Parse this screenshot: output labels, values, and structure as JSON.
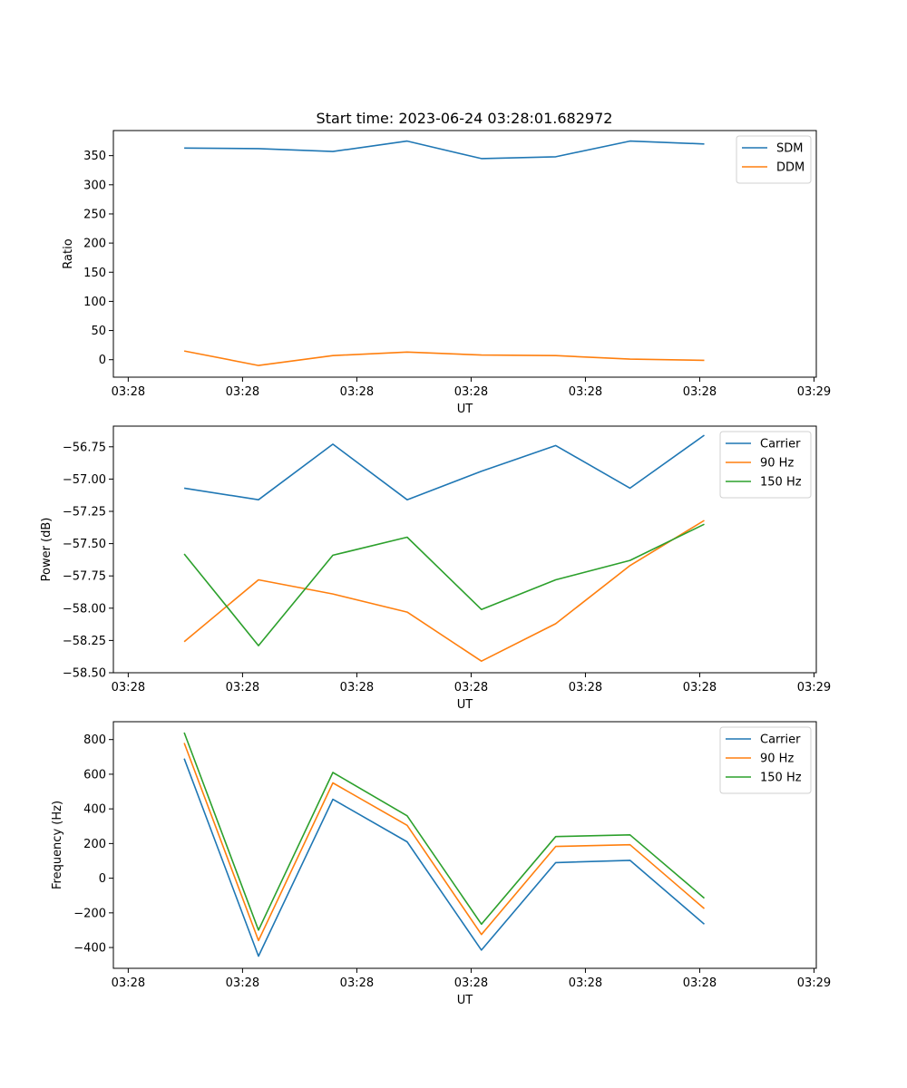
{
  "figure": {
    "title": "Start time: 2023-06-24 03:28:01.682972"
  },
  "chart_data": [
    {
      "type": "line",
      "xlabel": "UT",
      "ylabel": "Ratio",
      "x_ticks": [
        "03:28",
        "03:28",
        "03:28",
        "03:28",
        "03:28",
        "03:28",
        "03:29"
      ],
      "x_ticks_pos": [
        0,
        1,
        2,
        3,
        4,
        5,
        6
      ],
      "x": [
        0.49,
        1.14,
        1.79,
        2.44,
        3.09,
        3.74,
        4.39,
        5.04
      ],
      "xlim": [
        -0.13,
        6.02
      ],
      "y_ticks": [
        0,
        50,
        100,
        150,
        200,
        250,
        300,
        350
      ],
      "ylim": [
        -30,
        393
      ],
      "grid": false,
      "legend_position": "top-right",
      "series": [
        {
          "name": "SDM",
          "color": "#1f77b4",
          "values": [
            363,
            362,
            357,
            375,
            345,
            348,
            375,
            370
          ]
        },
        {
          "name": "DDM",
          "color": "#ff7f0e",
          "values": [
            15,
            -10,
            7,
            13,
            8,
            7,
            1,
            -1
          ]
        }
      ]
    },
    {
      "type": "line",
      "xlabel": "UT",
      "ylabel": "Power (dB)",
      "x_ticks": [
        "03:28",
        "03:28",
        "03:28",
        "03:28",
        "03:28",
        "03:28",
        "03:29"
      ],
      "x_ticks_pos": [
        0,
        1,
        2,
        3,
        4,
        5,
        6
      ],
      "x": [
        0.49,
        1.14,
        1.79,
        2.44,
        3.09,
        3.74,
        4.39,
        5.04
      ],
      "xlim": [
        -0.13,
        6.02
      ],
      "y_ticks": [
        -58.5,
        -58.25,
        -58.0,
        -57.75,
        -57.5,
        -57.25,
        -57.0,
        -56.75
      ],
      "y_tick_labels": [
        "−58.50",
        "−58.25",
        "−58.00",
        "−57.75",
        "−57.50",
        "−57.25",
        "−57.00",
        "−56.75"
      ],
      "ylim": [
        -58.5,
        -56.59
      ],
      "grid": false,
      "legend_position": "top-right",
      "series": [
        {
          "name": "Carrier",
          "color": "#1f77b4",
          "values": [
            -57.07,
            -57.16,
            -56.73,
            -57.16,
            -56.94,
            -56.74,
            -57.07,
            -56.66
          ]
        },
        {
          "name": "90 Hz",
          "color": "#ff7f0e",
          "values": [
            -58.26,
            -57.78,
            -57.89,
            -58.03,
            -58.41,
            -58.12,
            -57.67,
            -57.32
          ]
        },
        {
          "name": "150 Hz",
          "color": "#2ca02c",
          "values": [
            -57.58,
            -58.29,
            -57.59,
            -57.45,
            -58.01,
            -57.78,
            -57.63,
            -57.35
          ]
        }
      ]
    },
    {
      "type": "line",
      "xlabel": "UT",
      "ylabel": "Frequency (Hz)",
      "x_ticks": [
        "03:28",
        "03:28",
        "03:28",
        "03:28",
        "03:28",
        "03:28",
        "03:29"
      ],
      "x_ticks_pos": [
        0,
        1,
        2,
        3,
        4,
        5,
        6
      ],
      "x": [
        0.49,
        1.14,
        1.79,
        2.44,
        3.09,
        3.74,
        4.39,
        5.04
      ],
      "xlim": [
        -0.13,
        6.02
      ],
      "y_ticks": [
        -400,
        -200,
        0,
        200,
        400,
        600,
        800
      ],
      "y_tick_labels": [
        "−400",
        "−200",
        "0",
        "200",
        "400",
        "600",
        "800"
      ],
      "ylim": [
        -520,
        903
      ],
      "grid": false,
      "legend_position": "top-right",
      "series": [
        {
          "name": "Carrier",
          "color": "#1f77b4",
          "values": [
            690,
            -450,
            455,
            210,
            -415,
            90,
            103,
            -265
          ]
        },
        {
          "name": "90 Hz",
          "color": "#ff7f0e",
          "values": [
            780,
            -360,
            550,
            305,
            -325,
            183,
            193,
            -175
          ]
        },
        {
          "name": "150 Hz",
          "color": "#2ca02c",
          "values": [
            840,
            -300,
            610,
            360,
            -265,
            240,
            250,
            -115
          ]
        }
      ]
    }
  ]
}
